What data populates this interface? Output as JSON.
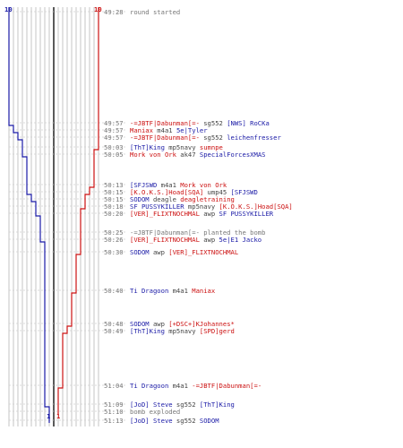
{
  "colors": {
    "team_a": "#1a1aa6",
    "team_b": "#cc1111",
    "neutral": "#444444",
    "muted": "#777777",
    "gridline": "#b8b8b8",
    "rowline": "#cfcfcf",
    "lastkill": "#000000"
  },
  "teams": {
    "a": {
      "start_count": "10",
      "end_count": "1"
    },
    "b": {
      "start_count": "10",
      "end_count": "1"
    }
  },
  "events": [
    {
      "time": "49:28",
      "parts": [
        {
          "text": "round started",
          "team": "muted"
        }
      ]
    },
    {
      "time": "49:57",
      "parts": [
        {
          "text": "-=JBTF|Dabunman[=-",
          "team": "b"
        },
        {
          "text": " sg552 ",
          "team": "neutral"
        },
        {
          "text": "[NWS] RoCKa",
          "team": "a"
        }
      ]
    },
    {
      "time": "49:57",
      "parts": [
        {
          "text": "Maniax",
          "team": "b"
        },
        {
          "text": " m4a1 ",
          "team": "neutral"
        },
        {
          "text": "5e|Tyler",
          "team": "a"
        }
      ]
    },
    {
      "time": "49:57",
      "parts": [
        {
          "text": "-=JBTF|Dabunman[=-",
          "team": "b"
        },
        {
          "text": " sg552 ",
          "team": "neutral"
        },
        {
          "text": "leichenfresser",
          "team": "a"
        }
      ]
    },
    {
      "time": "50:03",
      "parts": [
        {
          "text": "[ThT]King",
          "team": "a"
        },
        {
          "text": " mp5navy ",
          "team": "neutral"
        },
        {
          "text": "sumnpe",
          "team": "b"
        }
      ]
    },
    {
      "time": "50:05",
      "parts": [
        {
          "text": "Mork von Ork",
          "team": "b"
        },
        {
          "text": " ak47 ",
          "team": "neutral"
        },
        {
          "text": "SpecialForcesXMAS",
          "team": "a"
        }
      ]
    },
    {
      "time": "50:13",
      "parts": [
        {
          "text": "[SFJSWD",
          "team": "a"
        },
        {
          "text": " m4a1 ",
          "team": "neutral"
        },
        {
          "text": "Mork von Ork",
          "team": "b"
        }
      ]
    },
    {
      "time": "50:15",
      "parts": [
        {
          "text": "[K.O.K.S.]Hoad[SQA]",
          "team": "b"
        },
        {
          "text": " ump45 ",
          "team": "neutral"
        },
        {
          "text": "[SFJSWD",
          "team": "a"
        }
      ]
    },
    {
      "time": "50:15",
      "parts": [
        {
          "text": "SODOM",
          "team": "a"
        },
        {
          "text": " deagle ",
          "team": "neutral"
        },
        {
          "text": "deagletraining",
          "team": "b"
        }
      ]
    },
    {
      "time": "50:18",
      "parts": [
        {
          "text": "SF PUSSYKILLER",
          "team": "a"
        },
        {
          "text": " mp5navy ",
          "team": "neutral"
        },
        {
          "text": "[K.O.K.S.]Hoad[SQA]",
          "team": "b"
        }
      ]
    },
    {
      "time": "50:20",
      "parts": [
        {
          "text": "[VER]_FLIXTNOCHMAL",
          "team": "b"
        },
        {
          "text": " awp ",
          "team": "neutral"
        },
        {
          "text": "SF PUSSYKILLER",
          "team": "a"
        }
      ]
    },
    {
      "time": "50:25",
      "parts": [
        {
          "text": "-=JBTF|Dabunman[=-",
          "team": "muted"
        },
        {
          "text": " planted the bomb",
          "team": "muted"
        }
      ]
    },
    {
      "time": "50:26",
      "parts": [
        {
          "text": "[VER]_FLIXTNOCHMAL",
          "team": "b"
        },
        {
          "text": " awp ",
          "team": "neutral"
        },
        {
          "text": "5e|E1 Jacko",
          "team": "a"
        }
      ]
    },
    {
      "time": "50:30",
      "parts": [
        {
          "text": "SODOM",
          "team": "a"
        },
        {
          "text": " awp ",
          "team": "neutral"
        },
        {
          "text": "[VER]_FLIXTNOCHMAL",
          "team": "b"
        }
      ]
    },
    {
      "time": "50:40",
      "parts": [
        {
          "text": "Ti Dragoon",
          "team": "a"
        },
        {
          "text": " m4a1 ",
          "team": "neutral"
        },
        {
          "text": "Maniax",
          "team": "b"
        }
      ]
    },
    {
      "time": "50:48",
      "parts": [
        {
          "text": "SODOM",
          "team": "a"
        },
        {
          "text": " awp ",
          "team": "neutral"
        },
        {
          "text": "[+DSC+]KJohannes*",
          "team": "b"
        }
      ]
    },
    {
      "time": "50:49",
      "parts": [
        {
          "text": "[ThT]King",
          "team": "a"
        },
        {
          "text": " mp5navy ",
          "team": "neutral"
        },
        {
          "text": "[SPD]gerd",
          "team": "b"
        }
      ]
    },
    {
      "time": "51:04",
      "parts": [
        {
          "text": "Ti Dragoon",
          "team": "a"
        },
        {
          "text": " m4a1 ",
          "team": "neutral"
        },
        {
          "text": "-=JBTF|Dabunman[=-",
          "team": "b"
        }
      ]
    },
    {
      "time": "51:09",
      "parts": [
        {
          "text": "[JoD] Steve",
          "team": "a"
        },
        {
          "text": " sg552 ",
          "team": "neutral"
        },
        {
          "text": "[ThT]King",
          "team": "a"
        }
      ]
    },
    {
      "time": "51:10",
      "parts": [
        {
          "text": "bomb exploded",
          "team": "muted"
        }
      ]
    },
    {
      "time": "51:13",
      "parts": [
        {
          "text": "[JoD] Steve",
          "team": "a"
        },
        {
          "text": " sg552 ",
          "team": "neutral"
        },
        {
          "text": "SODOM",
          "team": "a"
        }
      ]
    }
  ]
}
